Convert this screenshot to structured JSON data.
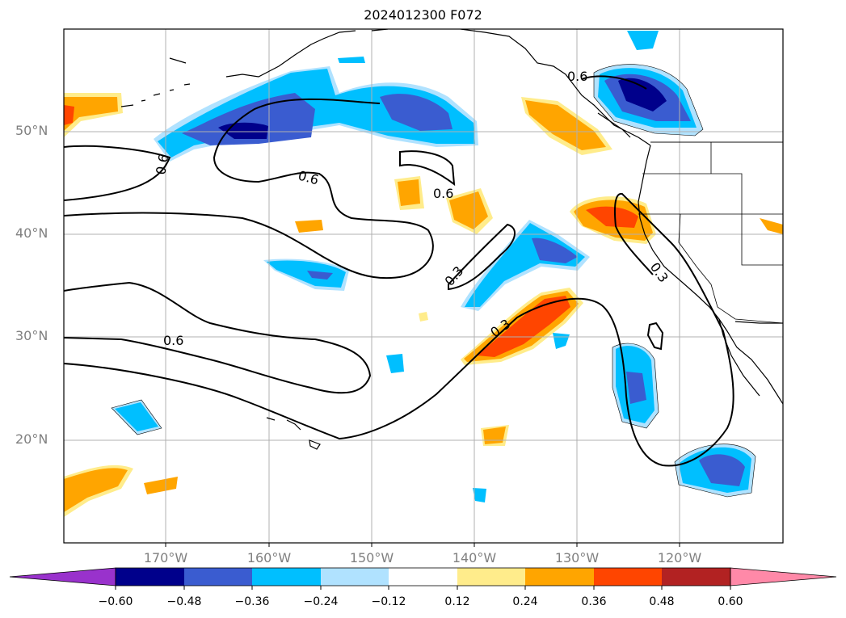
{
  "title": "2024012300 F072",
  "map": {
    "lat_labels": [
      "50°N",
      "40°N",
      "30°N",
      "20°N"
    ],
    "lon_labels": [
      "170°W",
      "160°W",
      "150°W",
      "140°W",
      "130°W",
      "120°W"
    ],
    "contour_labels": [
      "0.6",
      "0.6",
      "0.6",
      "0.3",
      "0.3",
      "0.6",
      "0.3",
      "0.6"
    ]
  },
  "colorbar": {
    "ticks": [
      "−0.60",
      "−0.48",
      "−0.36",
      "−0.24",
      "−0.12",
      "0.12",
      "0.24",
      "0.36",
      "0.48",
      "0.60"
    ],
    "colors": [
      "#9932cc",
      "#00008b",
      "#3a5cd0",
      "#00bfff",
      "#b0e2ff",
      "#ffffff",
      "#ffec8b",
      "#ffa500",
      "#ff4500",
      "#b22222",
      "#ff89a8"
    ]
  },
  "colors": {
    "blue_light": "#b0e2ff",
    "blue": "#00bfff",
    "blue_mid": "#3a5cd0",
    "blue_dark": "#00008b",
    "yellow": "#ffec8b",
    "orange": "#ffa500",
    "red_orange": "#ff4500",
    "grid": "#b0b0b0"
  }
}
